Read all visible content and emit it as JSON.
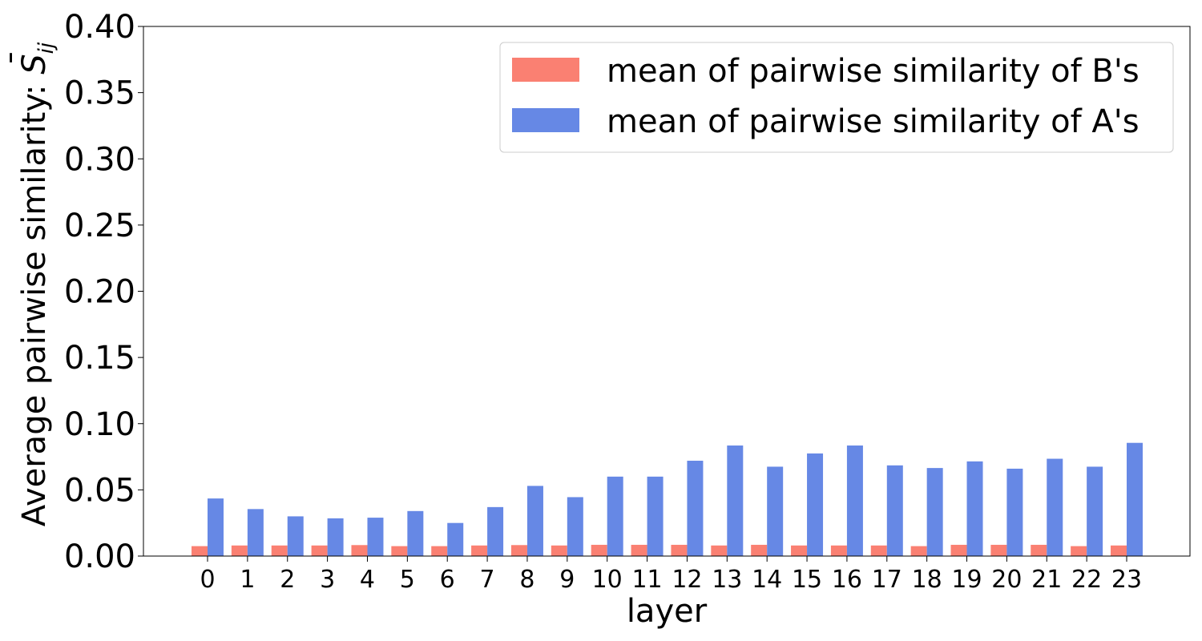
{
  "chart_data": {
    "type": "bar",
    "title": "",
    "xlabel": "layer",
    "ylabel": "Average pairwise similarity:  ",
    "ylabel_symbol": "S",
    "ylabel_symbol_accent": "¯",
    "ylabel_subscript": "ij",
    "ylim": [
      0,
      0.4
    ],
    "yticks": [
      "0.00",
      "0.05",
      "0.10",
      "0.15",
      "0.20",
      "0.25",
      "0.30",
      "0.35",
      "0.40"
    ],
    "grid": false,
    "legend_position": "top-right",
    "categories": [
      "0",
      "1",
      "2",
      "3",
      "4",
      "5",
      "6",
      "7",
      "8",
      "9",
      "10",
      "11",
      "12",
      "13",
      "14",
      "15",
      "16",
      "17",
      "18",
      "19",
      "20",
      "21",
      "22",
      "23"
    ],
    "series": [
      {
        "name": "mean of pairwise similarity of B's",
        "color": "#fa8072",
        "values": [
          0.0075,
          0.008,
          0.008,
          0.008,
          0.0083,
          0.0075,
          0.0075,
          0.008,
          0.0083,
          0.008,
          0.0085,
          0.0085,
          0.0085,
          0.008,
          0.0085,
          0.008,
          0.008,
          0.008,
          0.0075,
          0.0085,
          0.0085,
          0.0085,
          0.0075,
          0.008
        ]
      },
      {
        "name": "mean of pairwise similarity of A's",
        "color": "#6688e5",
        "values": [
          0.0435,
          0.0355,
          0.03,
          0.0285,
          0.029,
          0.034,
          0.025,
          0.037,
          0.053,
          0.0445,
          0.06,
          0.06,
          0.072,
          0.0835,
          0.0675,
          0.0775,
          0.0835,
          0.0685,
          0.0665,
          0.0715,
          0.066,
          0.0735,
          0.0675,
          0.0855
        ]
      }
    ]
  }
}
